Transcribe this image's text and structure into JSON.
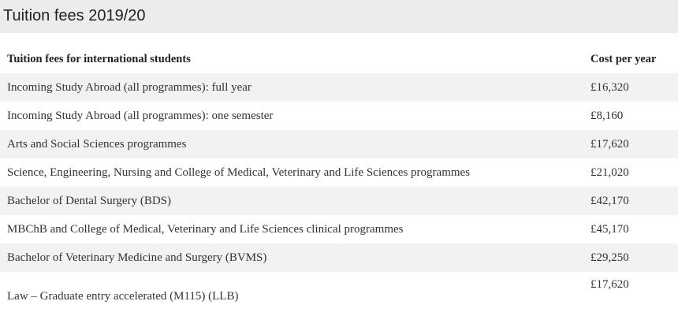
{
  "header": {
    "title": "Tuition fees 2019/20"
  },
  "table": {
    "columns": [
      "Tuition fees for international students",
      "Cost per year"
    ],
    "rows": [
      [
        "Incoming Study Abroad (all programmes): full year",
        "£16,320"
      ],
      [
        "Incoming Study Abroad (all programmes): one semester",
        "£8,160"
      ],
      [
        "Arts and Social Sciences programmes",
        "£17,620"
      ],
      [
        "Science, Engineering, Nursing and College of Medical, Veterinary and Life Sciences programmes",
        "£21,020"
      ],
      [
        "Bachelor of Dental Surgery (BDS)",
        "£42,170"
      ],
      [
        "MBChB and College of Medical, Veterinary and Life Sciences clinical programmes",
        "£45,170"
      ],
      [
        "Bachelor of Veterinary Medicine and Surgery (BVMS)",
        "£29,250"
      ],
      [
        "Law – Graduate entry accelerated (M115) (LLB)",
        "£17,620"
      ]
    ]
  }
}
